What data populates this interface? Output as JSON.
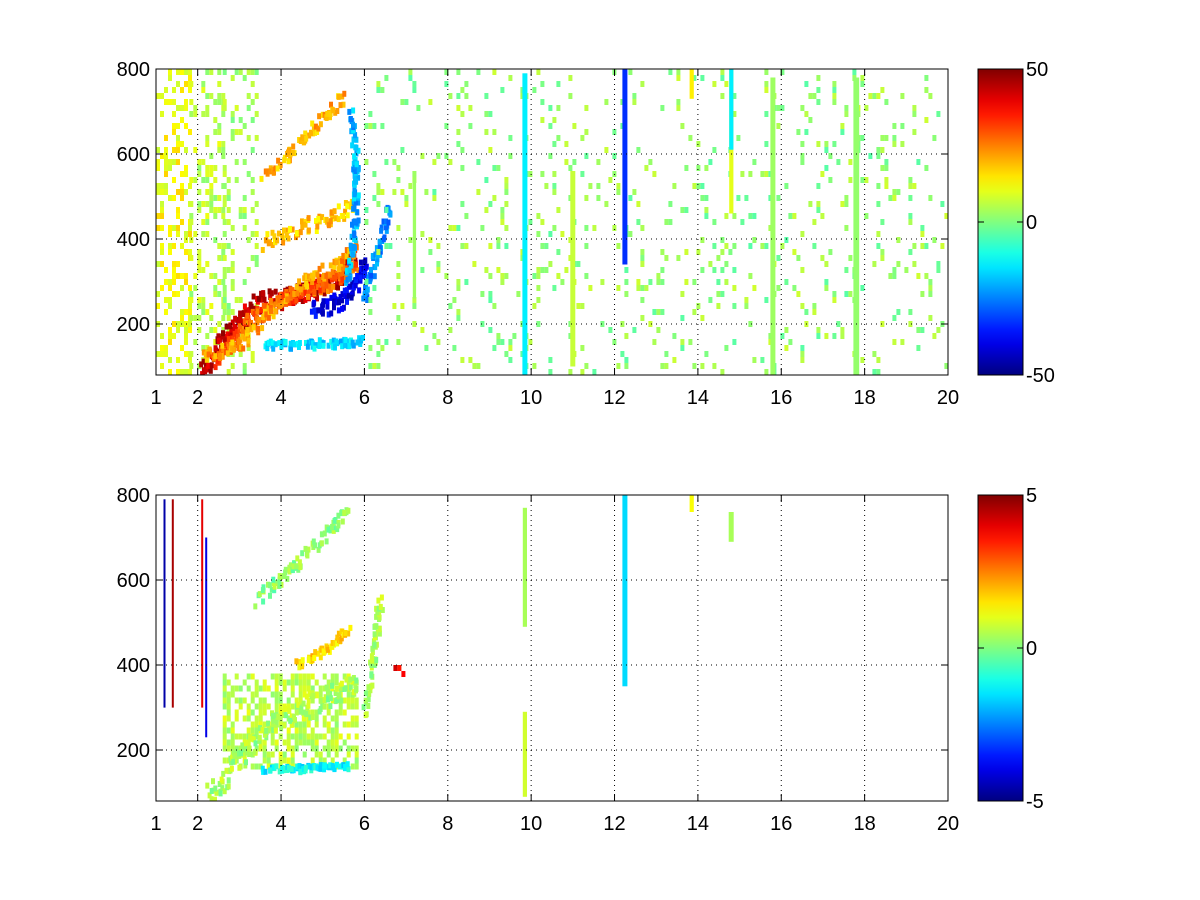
{
  "chart_data": [
    {
      "type": "heatmap",
      "title": "",
      "xlabel": "",
      "ylabel": "",
      "xlim": [
        1,
        20
      ],
      "ylim": [
        80,
        800
      ],
      "x_ticks": [
        "1",
        "2",
        "4",
        "6",
        "8",
        "10",
        "12",
        "14",
        "16",
        "18",
        "20"
      ],
      "y_ticks": [
        "200",
        "400",
        "600",
        "800"
      ],
      "grid": true,
      "colormap": "jet",
      "colorbar": {
        "min": -50,
        "max": 50,
        "ticks": [
          "50",
          "0",
          "-50"
        ]
      },
      "background": "#ffffff",
      "features": [
        {
          "kind": "band",
          "x_start": 1.0,
          "x_end": 1.8,
          "y_start": 80,
          "y_end": 800,
          "value": 12,
          "density": 0.35
        },
        {
          "kind": "band",
          "x_start": 1.8,
          "x_end": 2.6,
          "y_start": 80,
          "y_end": 800,
          "value": 6,
          "density": 0.3
        },
        {
          "kind": "band",
          "x_start": 2.6,
          "x_end": 3.4,
          "y_start": 80,
          "y_end": 800,
          "value": 4,
          "density": 0.22
        },
        {
          "kind": "curve",
          "points": [
            [
              2.1,
              90
            ],
            [
              2.8,
              180
            ],
            [
              3.5,
              250
            ],
            [
              4.5,
              270
            ],
            [
              5.3,
              300
            ],
            [
              5.8,
              360
            ]
          ],
          "value": 44,
          "width": 50,
          "density": 0.95
        },
        {
          "kind": "curve",
          "points": [
            [
              2.4,
              110
            ],
            [
              3.2,
              200
            ],
            [
              4.0,
              260
            ],
            [
              5.0,
              290
            ],
            [
              5.8,
              330
            ]
          ],
          "value": 28,
          "width": 35,
          "density": 0.85
        },
        {
          "kind": "curve",
          "points": [
            [
              2.2,
              120
            ],
            [
              3.0,
              150
            ],
            [
              3.8,
              230
            ],
            [
              4.6,
              300
            ],
            [
              5.4,
              340
            ],
            [
              5.8,
              380
            ]
          ],
          "value": 22,
          "width": 30,
          "density": 0.7
        },
        {
          "kind": "curve",
          "points": [
            [
              3.6,
              390
            ],
            [
              4.4,
              420
            ],
            [
              5.2,
              450
            ],
            [
              5.8,
              480
            ]
          ],
          "value": 18,
          "width": 35,
          "density": 0.7
        },
        {
          "kind": "curve",
          "points": [
            [
              3.6,
              545
            ],
            [
              4.2,
              600
            ],
            [
              4.8,
              660
            ],
            [
              5.5,
              730
            ]
          ],
          "value": 20,
          "width": 35,
          "density": 0.65
        },
        {
          "kind": "curve",
          "points": [
            [
              3.6,
              150
            ],
            [
              4.5,
              150
            ],
            [
              5.5,
              155
            ],
            [
              5.9,
              160
            ]
          ],
          "value": -16,
          "width": 20,
          "density": 0.75
        },
        {
          "kind": "curve",
          "points": [
            [
              4.8,
              230
            ],
            [
              5.4,
              250
            ],
            [
              5.8,
              290
            ],
            [
              6.0,
              340
            ]
          ],
          "value": -40,
          "width": 40,
          "density": 0.9
        },
        {
          "kind": "curve",
          "points": [
            [
              5.6,
              300
            ],
            [
              5.8,
              450
            ],
            [
              5.8,
              600
            ],
            [
              5.7,
              700
            ]
          ],
          "value": -20,
          "width": 20,
          "density": 0.6
        },
        {
          "kind": "curve",
          "points": [
            [
              6.0,
              260
            ],
            [
              6.3,
              360
            ],
            [
              6.6,
              470
            ]
          ],
          "value": -24,
          "width": 30,
          "density": 0.55
        },
        {
          "kind": "scatter",
          "x_start": 6.0,
          "x_end": 20.0,
          "y_start": 80,
          "y_end": 800,
          "value": 2,
          "density": 0.085
        },
        {
          "kind": "vline",
          "x": 9.85,
          "y_start": 80,
          "y_end": 790,
          "value": -14,
          "width": 0.12
        },
        {
          "kind": "vline",
          "x": 12.25,
          "y_start": 340,
          "y_end": 800,
          "value": -33,
          "width": 0.12
        },
        {
          "kind": "vline",
          "x": 17.8,
          "y_start": 80,
          "y_end": 780,
          "value": 2,
          "width": 0.14
        },
        {
          "kind": "vline",
          "x": 15.8,
          "y_start": 80,
          "y_end": 780,
          "value": 3,
          "width": 0.12
        },
        {
          "kind": "vline",
          "x": 14.8,
          "y_start": 460,
          "y_end": 800,
          "value": 10,
          "width": 0.1
        },
        {
          "kind": "vline",
          "x": 14.8,
          "y_start": 610,
          "y_end": 800,
          "value": -14,
          "width": 0.1
        },
        {
          "kind": "vline",
          "x": 13.85,
          "y_start": 730,
          "y_end": 800,
          "value": 14,
          "width": 0.1
        },
        {
          "kind": "vline",
          "x": 11.0,
          "y_start": 100,
          "y_end": 560,
          "value": 7,
          "width": 0.12
        },
        {
          "kind": "vline",
          "x": 7.2,
          "y_start": 260,
          "y_end": 560,
          "value": 3,
          "width": 0.08
        }
      ]
    },
    {
      "type": "heatmap",
      "title": "",
      "xlabel": "",
      "ylabel": "",
      "xlim": [
        1,
        20
      ],
      "ylim": [
        80,
        800
      ],
      "x_ticks": [
        "1",
        "2",
        "4",
        "6",
        "8",
        "10",
        "12",
        "14",
        "16",
        "18",
        "20"
      ],
      "y_ticks": [
        "200",
        "400",
        "600",
        "800"
      ],
      "grid": true,
      "colormap": "jet",
      "colorbar": {
        "min": -5,
        "max": 5,
        "ticks": [
          "5",
          "0",
          "-5"
        ]
      },
      "background": "#ffffff",
      "features": [
        {
          "kind": "blob",
          "x_start": 2.6,
          "x_end": 5.8,
          "y_start": 160,
          "y_end": 380,
          "value": 0.6,
          "density": 0.6
        },
        {
          "kind": "curve",
          "points": [
            [
              2.3,
              90
            ],
            [
              3.0,
              180
            ],
            [
              3.8,
              260
            ],
            [
              4.6,
              300
            ],
            [
              5.4,
              330
            ],
            [
              5.8,
              360
            ]
          ],
          "value": 0.4,
          "width": 55,
          "density": 0.75
        },
        {
          "kind": "curve",
          "points": [
            [
              4.4,
              400
            ],
            [
              5.0,
              430
            ],
            [
              5.6,
              480
            ]
          ],
          "value": 1.6,
          "width": 18,
          "density": 0.75
        },
        {
          "kind": "curve",
          "points": [
            [
              3.4,
              550
            ],
            [
              4.0,
              600
            ],
            [
              4.6,
              660
            ],
            [
              5.2,
              720
            ],
            [
              5.6,
              760
            ]
          ],
          "value": 0.1,
          "width": 30,
          "density": 0.55
        },
        {
          "kind": "curve",
          "points": [
            [
              3.6,
              155
            ],
            [
              4.5,
              155
            ],
            [
              5.6,
              160
            ]
          ],
          "value": -1.2,
          "width": 15,
          "density": 0.8
        },
        {
          "kind": "curve",
          "points": [
            [
              6.0,
              280
            ],
            [
              6.2,
              400
            ],
            [
              6.4,
              560
            ]
          ],
          "value": 0.5,
          "width": 30,
          "density": 0.45
        },
        {
          "kind": "vline",
          "x": 9.85,
          "y_start": 490,
          "y_end": 770,
          "value": 0.4,
          "width": 0.1
        },
        {
          "kind": "vline",
          "x": 9.85,
          "y_start": 90,
          "y_end": 290,
          "value": 0.8,
          "width": 0.1
        },
        {
          "kind": "vline",
          "x": 12.25,
          "y_start": 350,
          "y_end": 800,
          "value": -1.6,
          "width": 0.12
        },
        {
          "kind": "vline",
          "x": 14.8,
          "y_start": 690,
          "y_end": 760,
          "value": 0.4,
          "width": 0.12
        },
        {
          "kind": "vline",
          "x": 13.85,
          "y_start": 760,
          "y_end": 800,
          "value": 1.2,
          "width": 0.1
        },
        {
          "kind": "vline",
          "x": 1.2,
          "y_start": 300,
          "y_end": 790,
          "value": -4.6,
          "width": 0.04
        },
        {
          "kind": "vline",
          "x": 1.4,
          "y_start": 300,
          "y_end": 790,
          "value": 4.6,
          "width": 0.04
        },
        {
          "kind": "vline",
          "x": 2.2,
          "y_start": 230,
          "y_end": 700,
          "value": -4.0,
          "width": 0.04
        },
        {
          "kind": "vline",
          "x": 2.1,
          "y_start": 300,
          "y_end": 790,
          "value": 4.0,
          "width": 0.03
        },
        {
          "kind": "scatter",
          "x_start": 6.6,
          "x_end": 6.9,
          "y_start": 380,
          "y_end": 400,
          "value": 4.0,
          "density": 0.5
        }
      ]
    }
  ]
}
